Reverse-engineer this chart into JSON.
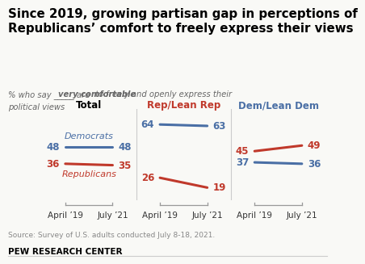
{
  "title": "Since 2019, growing partisan gap in perceptions of\nRepublicans’ comfort to freely express their views",
  "subtitle1": "% who say _____ are ",
  "subtitle2": "very comfortable",
  "subtitle3": " to freely and openly express their",
  "subtitle4": "political views",
  "source": "Source: Survey of U.S. adults conducted July 8-18, 2021.",
  "footer": "PEW RESEARCH CENTER",
  "dem_color": "#4a6fa5",
  "rep_color": "#c0392b",
  "title_color": "#000000",
  "subtitle_color": "#666666",
  "source_color": "#888888",
  "background_color": "#f9f9f6",
  "sections": [
    {
      "label": "Total",
      "label_color": "#000000",
      "x": [
        0,
        1
      ],
      "dem_values": [
        48,
        48
      ],
      "rep_values": [
        36,
        35
      ],
      "dem_label": "Democrats",
      "rep_label": "Republicans"
    },
    {
      "label": "Rep/Lean Rep",
      "label_color": "#c0392b",
      "x": [
        2,
        3
      ],
      "dem_values": [
        64,
        63
      ],
      "rep_values": [
        26,
        19
      ],
      "dem_label": null,
      "rep_label": null
    },
    {
      "label": "Dem/Lean Dem",
      "label_color": "#4a6fa5",
      "x": [
        4,
        5
      ],
      "dem_values": [
        37,
        36
      ],
      "rep_values": [
        45,
        49
      ],
      "dem_label": null,
      "rep_label": null
    }
  ],
  "xtick_labels": [
    "April ’19",
    "July ’21",
    "April ’19",
    "July ’21",
    "April ’19",
    "July ’21"
  ],
  "ylim": [
    10,
    75
  ],
  "xlim": [
    -0.6,
    5.6
  ]
}
